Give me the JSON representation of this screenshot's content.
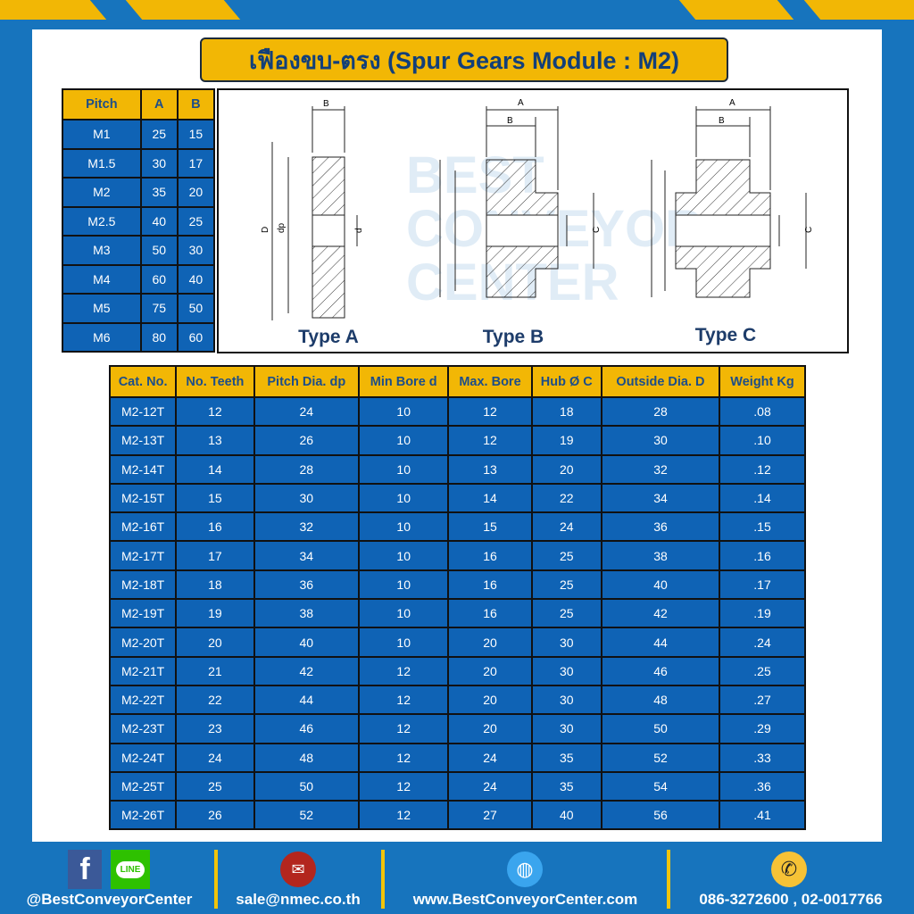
{
  "title": "เฟืองขบ-ตรง (Spur Gears Module : M2)",
  "pitch_table": {
    "headers": [
      "Pitch",
      "A",
      "B"
    ],
    "rows": [
      [
        "M1",
        "25",
        "15"
      ],
      [
        "M1.5",
        "30",
        "17"
      ],
      [
        "M2",
        "35",
        "20"
      ],
      [
        "M2.5",
        "40",
        "25"
      ],
      [
        "M3",
        "50",
        "30"
      ],
      [
        "M4",
        "60",
        "40"
      ],
      [
        "M5",
        "75",
        "50"
      ],
      [
        "M6",
        "80",
        "60"
      ]
    ]
  },
  "diagrams": {
    "types": [
      "Type A",
      "Type B",
      "Type C"
    ],
    "labels": {
      "A": "A",
      "B": "B",
      "C": "C",
      "D": "D",
      "dp": "dp",
      "d": "d"
    },
    "watermark": "BEST CONVEYOR CENTER"
  },
  "spec_table": {
    "headers": [
      "Cat. No.",
      "No. Teeth",
      "Pitch Dia. dp",
      "Min Bore d",
      "Max. Bore",
      "Hub Ø C",
      "Outside Dia. D",
      "Weight Kg"
    ],
    "rows": [
      [
        "M2-12T",
        "12",
        "24",
        "10",
        "12",
        "18",
        "28",
        ".08"
      ],
      [
        "M2-13T",
        "13",
        "26",
        "10",
        "12",
        "19",
        "30",
        ".10"
      ],
      [
        "M2-14T",
        "14",
        "28",
        "10",
        "13",
        "20",
        "32",
        ".12"
      ],
      [
        "M2-15T",
        "15",
        "30",
        "10",
        "14",
        "22",
        "34",
        ".14"
      ],
      [
        "M2-16T",
        "16",
        "32",
        "10",
        "15",
        "24",
        "36",
        ".15"
      ],
      [
        "M2-17T",
        "17",
        "34",
        "10",
        "16",
        "25",
        "38",
        ".16"
      ],
      [
        "M2-18T",
        "18",
        "36",
        "10",
        "16",
        "25",
        "40",
        ".17"
      ],
      [
        "M2-19T",
        "19",
        "38",
        "10",
        "16",
        "25",
        "42",
        ".19"
      ],
      [
        "M2-20T",
        "20",
        "40",
        "10",
        "20",
        "30",
        "44",
        ".24"
      ],
      [
        "M2-21T",
        "21",
        "42",
        "12",
        "20",
        "30",
        "46",
        ".25"
      ],
      [
        "M2-22T",
        "22",
        "44",
        "12",
        "20",
        "30",
        "48",
        ".27"
      ],
      [
        "M2-23T",
        "23",
        "46",
        "12",
        "20",
        "30",
        "50",
        ".29"
      ],
      [
        "M2-24T",
        "24",
        "48",
        "12",
        "24",
        "35",
        "52",
        ".33"
      ],
      [
        "M2-25T",
        "25",
        "50",
        "12",
        "24",
        "35",
        "54",
        ".36"
      ],
      [
        "M2-26T",
        "26",
        "52",
        "12",
        "27",
        "40",
        "56",
        ".41"
      ]
    ]
  },
  "footer": {
    "social": "@BestConveyorCenter",
    "line_icon": "LINE",
    "email": "sale@nmec.co.th",
    "website": "www.BestConveyorCenter.com",
    "phone": "086-3272600 , 02-0017766"
  },
  "colors": {
    "background": "#1774bd",
    "accent": "#f2b705",
    "cell": "#0f63b5",
    "header_text": "#1d4e89"
  }
}
